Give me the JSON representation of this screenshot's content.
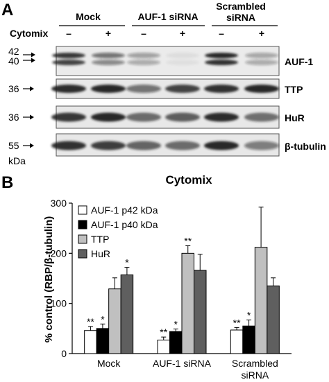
{
  "panel_a": {
    "letter": "A",
    "groups": [
      "Mock",
      "AUF-1 siRNA",
      "Scrambled siRNA"
    ],
    "groups_display": [
      [
        "Mock"
      ],
      [
        "AUF-1 siRNA"
      ],
      [
        "Scrambled",
        "siRNA"
      ]
    ],
    "treatment_label": "Cytomix",
    "lane_signs": [
      "–",
      "+",
      "–",
      "+",
      "–",
      "+"
    ],
    "blots": [
      {
        "protein": "AUF-1",
        "markers": [
          "42",
          "40"
        ]
      },
      {
        "protein": "TTP",
        "markers": [
          "36"
        ]
      },
      {
        "protein": "HuR",
        "markers": [
          "36"
        ]
      },
      {
        "protein": "β-tubulin",
        "markers": [
          "55"
        ]
      }
    ],
    "mw_unit": "kDa"
  },
  "panel_b": {
    "letter": "B"
  },
  "chart_data": {
    "type": "bar",
    "title": "Cytomix",
    "ylabel": "% control (RBP/β-tubulin)",
    "xlabel": "",
    "ylim": [
      0,
      300
    ],
    "yticks": [
      0,
      100,
      200,
      300
    ],
    "categories": [
      "Mock",
      "AUF-1 siRNA",
      "Scrambled siRNA"
    ],
    "category_display": [
      [
        "Mock"
      ],
      [
        "AUF-1 siRNA"
      ],
      [
        "Scrambled",
        "siRNA"
      ]
    ],
    "legend_position": "top-left",
    "grid": false,
    "series": [
      {
        "name": "AUF-1 p42 kDa",
        "color": "#ffffff",
        "values": [
          46,
          27,
          47
        ],
        "errors": [
          8,
          6,
          5
        ],
        "annotations": [
          "**",
          "**",
          "**"
        ]
      },
      {
        "name": "AUF-1 p40 kDa",
        "color": "#000000",
        "values": [
          50,
          44,
          55
        ],
        "errors": [
          9,
          5,
          12
        ],
        "annotations": [
          "*",
          "*",
          "*"
        ]
      },
      {
        "name": "TTP",
        "color": "#c0c0c0",
        "values": [
          129,
          200,
          212
        ],
        "errors": [
          22,
          15,
          80
        ],
        "annotations": [
          "",
          "**",
          ""
        ]
      },
      {
        "name": "HuR",
        "color": "#5f5f5f",
        "values": [
          157,
          166,
          135
        ],
        "errors": [
          15,
          32,
          16
        ],
        "annotations": [
          "*",
          "",
          ""
        ]
      }
    ]
  }
}
